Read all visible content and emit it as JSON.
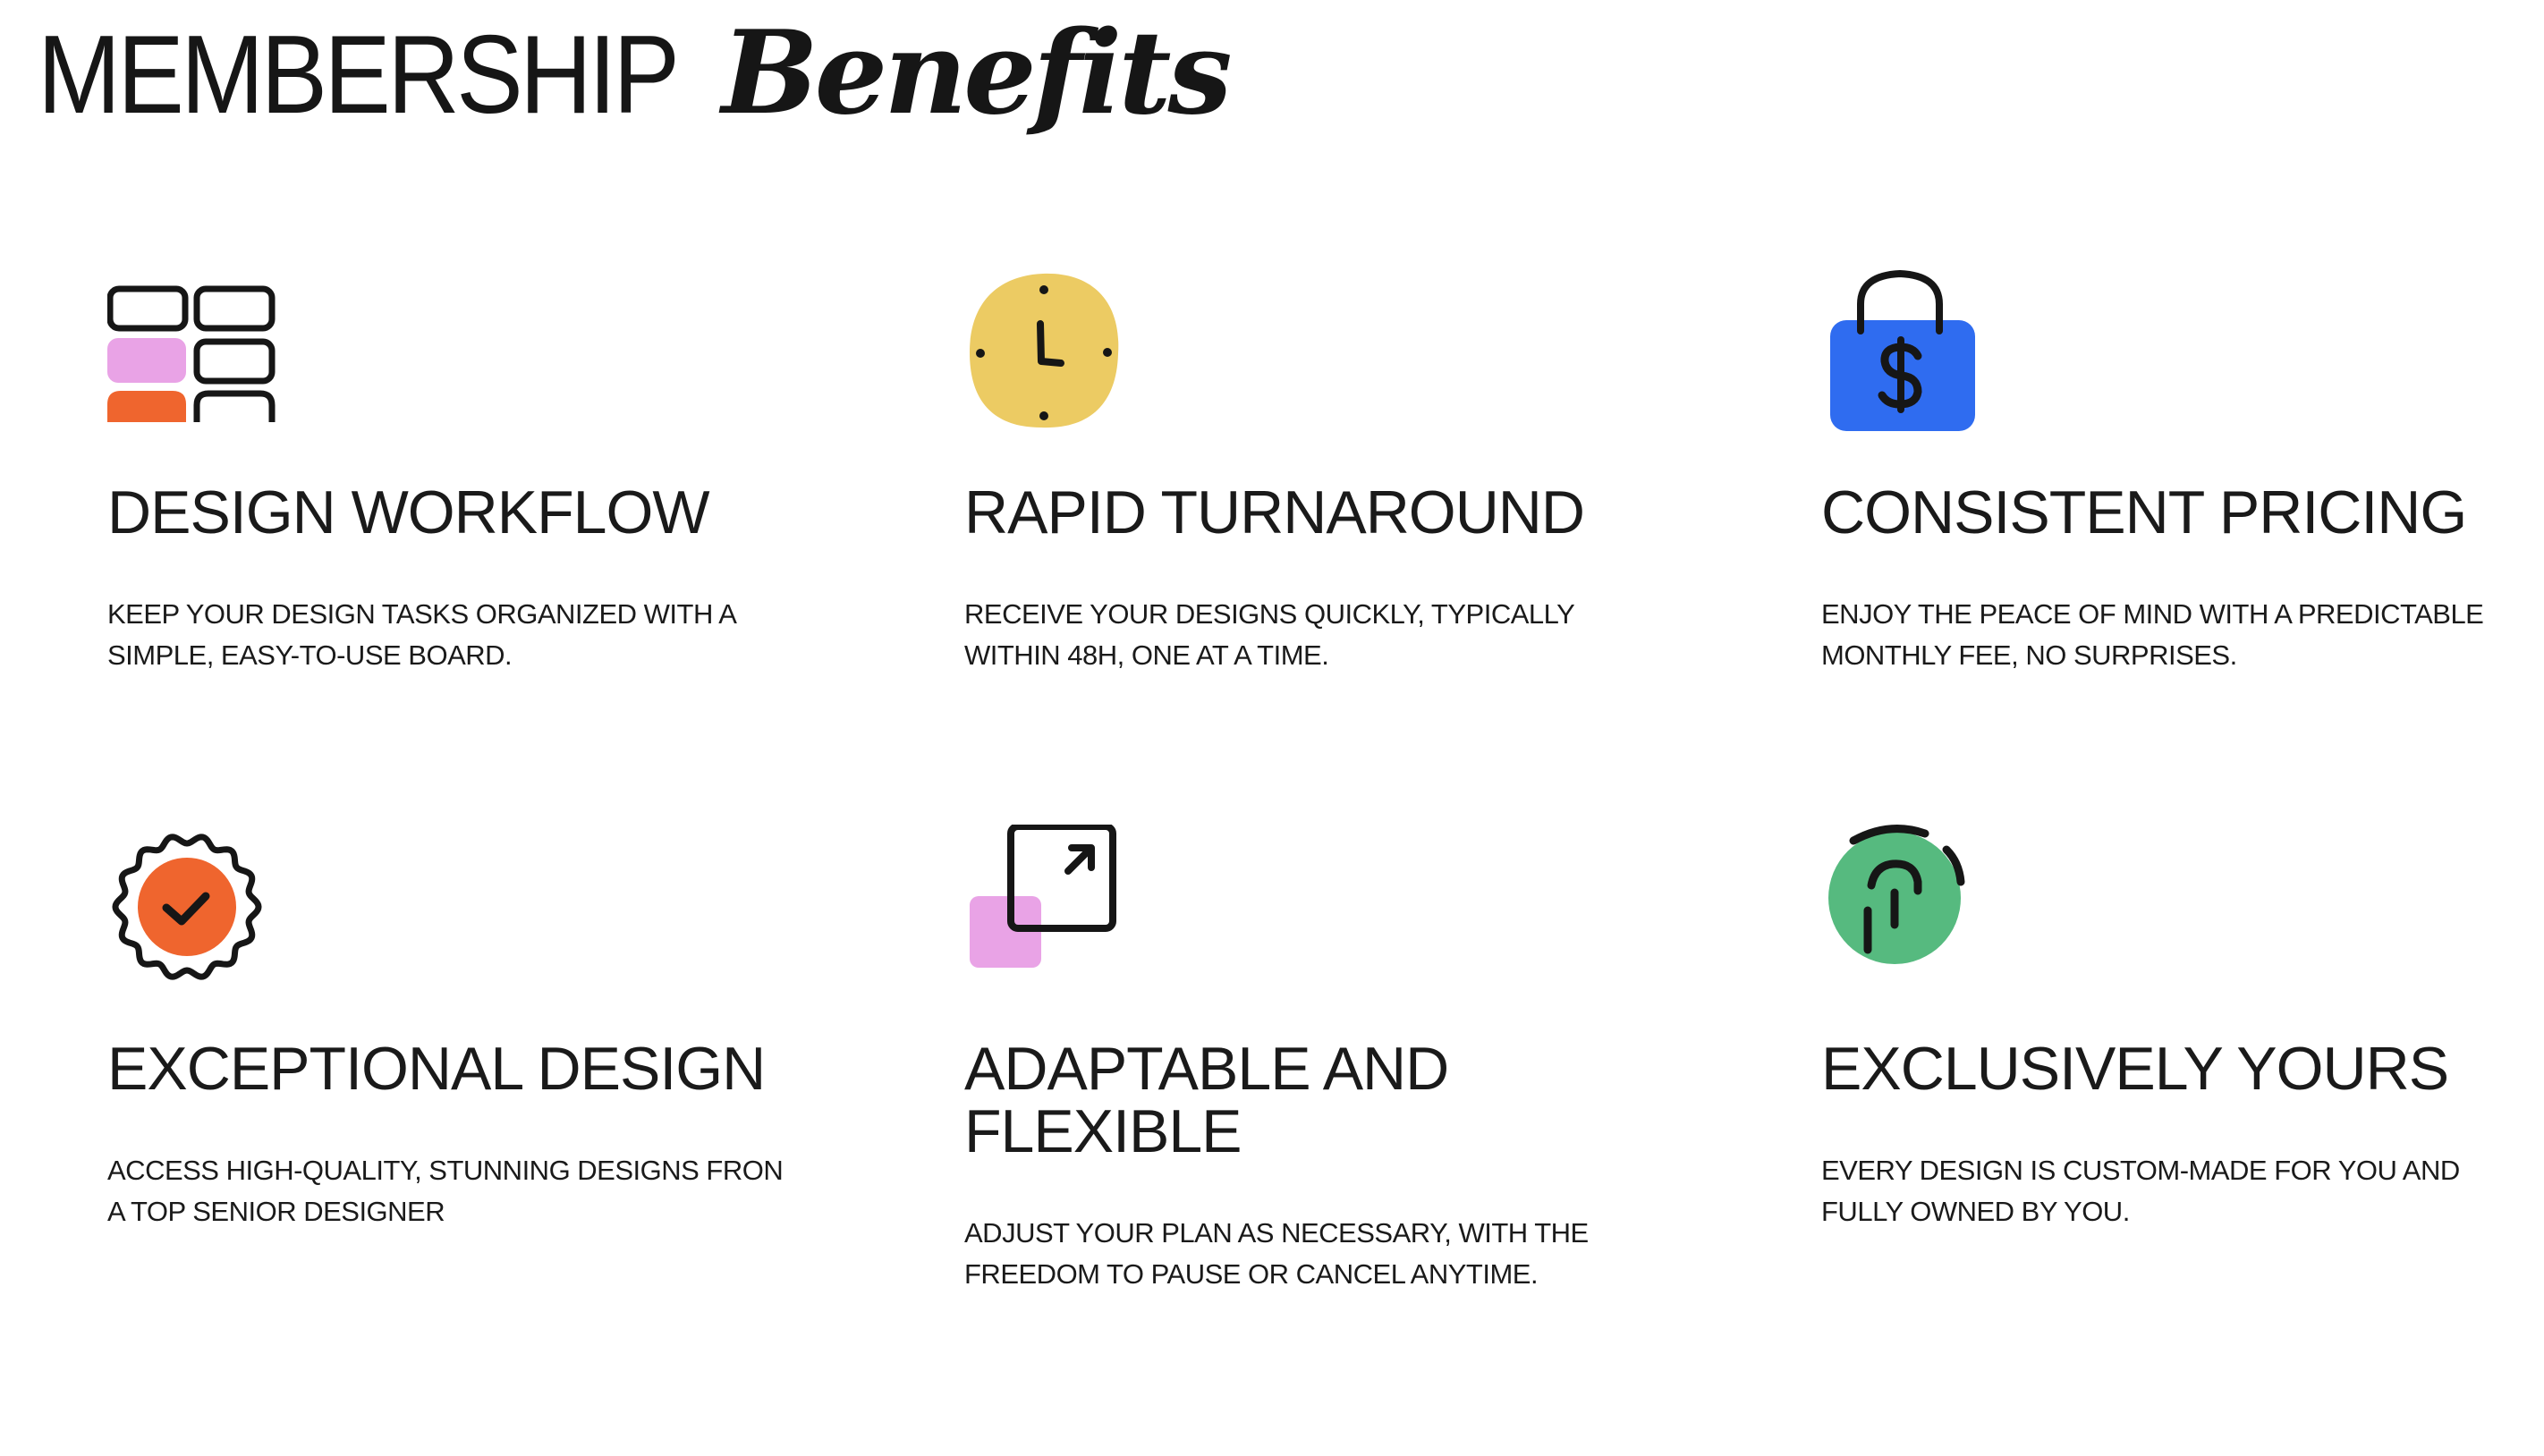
{
  "header": {
    "title_strong": "MEMBERSHIP",
    "title_italic": "Benefits"
  },
  "colors": {
    "text": "#161616",
    "pink": "#E9A3E6",
    "orange": "#EF652E",
    "yellow": "#ECCB63",
    "blue": "#2F6CF0",
    "green": "#56BA7F"
  },
  "benefits": [
    {
      "icon": "kanban-board-icon",
      "title": "DESIGN WORKFLOW",
      "description": "KEEP YOUR DESIGN TASKS ORGANIZED WITH A SIMPLE, EASY-TO-USE BOARD."
    },
    {
      "icon": "clock-icon",
      "title": "RAPID TURNAROUND",
      "description": "RECEIVE YOUR DESIGNS QUICKLY, TYPICALLY WITHIN 48H, ONE AT A TIME."
    },
    {
      "icon": "dollar-bag-icon",
      "title": "CONSISTENT PRICING",
      "description": "ENJOY THE PEACE OF MIND WITH A PREDICTABLE MONTHLY FEE, NO SURPRISES."
    },
    {
      "icon": "badge-check-icon",
      "title": "EXCEPTIONAL DESIGN",
      "description": "ACCESS HIGH-QUALITY, STUNNING DESIGNS FRON A TOP SENIOR DESIGNER"
    },
    {
      "icon": "expand-arrow-icon",
      "title": "ADAPTABLE AND FLEXIBLE",
      "description": "ADJUST YOUR PLAN AS NECESSARY, WITH THE FREEDOM TO PAUSE OR CANCEL ANYTIME."
    },
    {
      "icon": "fingerprint-icon",
      "title": "EXCLUSIVELY YOURS",
      "description": "EVERY DESIGN IS CUSTOM-MADE FOR YOU AND FULLY OWNED BY YOU."
    }
  ]
}
